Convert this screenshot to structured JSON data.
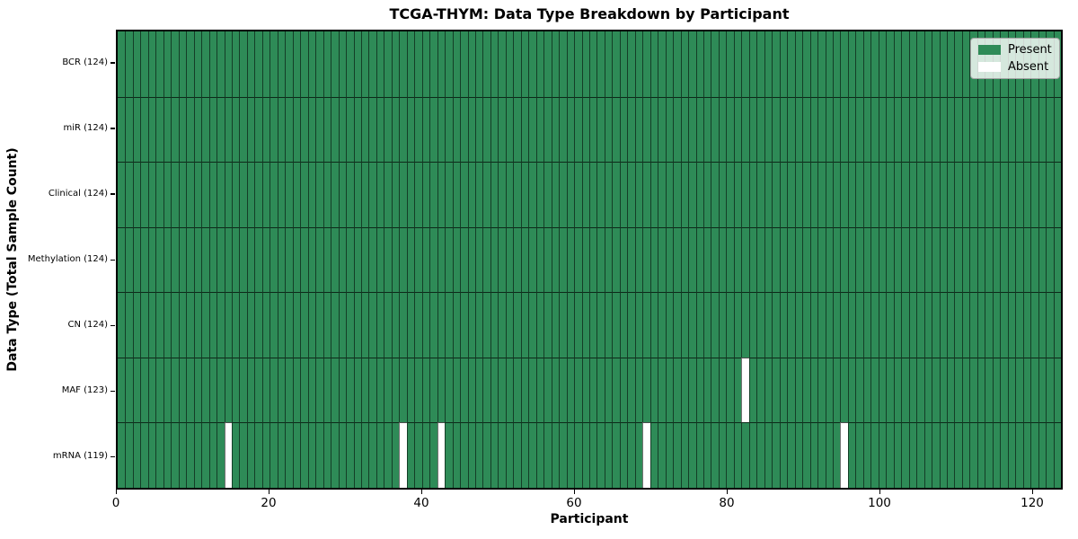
{
  "chart_data": {
    "type": "heatmap",
    "title": "TCGA-THYM: Data Type Breakdown by Participant",
    "xlabel": "Participant",
    "ylabel": "Data Type (Total Sample Count)",
    "x_ticks": [
      0,
      20,
      40,
      60,
      80,
      100,
      120
    ],
    "xlim": [
      0,
      124
    ],
    "n_participants": 124,
    "legend": {
      "position": "upper-right",
      "entries": [
        {
          "label": "Present",
          "color": "#2E8B57"
        },
        {
          "label": "Absent",
          "color": "#FFFFFF"
        }
      ]
    },
    "rows": [
      {
        "label": "BCR (124)",
        "present_count": 124,
        "absent_participants": []
      },
      {
        "label": "miR (124)",
        "present_count": 124,
        "absent_participants": []
      },
      {
        "label": "Clinical (124)",
        "present_count": 124,
        "absent_participants": []
      },
      {
        "label": "Methylation (124)",
        "present_count": 124,
        "absent_participants": []
      },
      {
        "label": "CN (124)",
        "present_count": 124,
        "absent_participants": []
      },
      {
        "label": "MAF (123)",
        "present_count": 123,
        "absent_participants": [
          82
        ]
      },
      {
        "label": "mRNA (119)",
        "present_count": 119,
        "absent_participants": [
          14,
          37,
          42,
          69,
          95
        ]
      }
    ],
    "colors": {
      "present": "#2E8B57",
      "absent": "#FFFFFF",
      "cell_border": "rgba(0,0,0,0.55)",
      "row_border": "rgba(0,0,0,0.7)",
      "plot_border": "#000000"
    }
  }
}
